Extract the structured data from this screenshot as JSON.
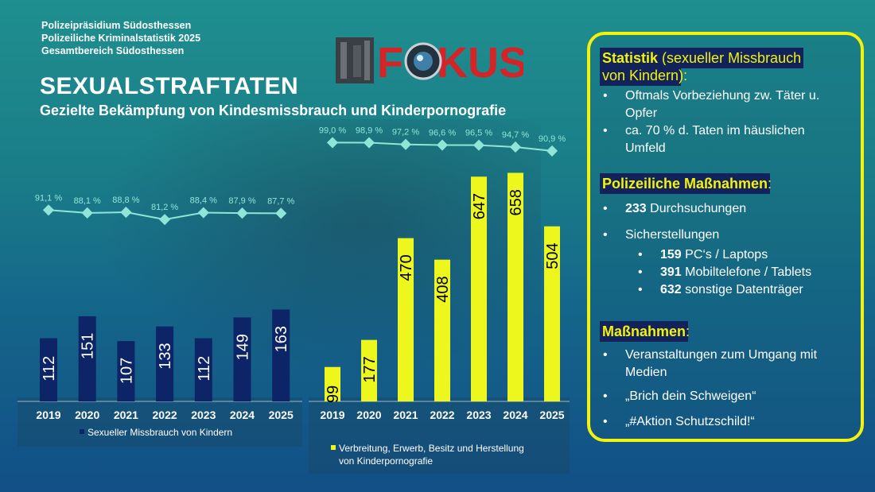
{
  "header": {
    "line1": "Polizeipräsidium Südosthessen",
    "line2": "Polizeiliche Kriminalstatistik 2025",
    "line3": "Gesamtbereich Südosthessen",
    "title": "SEXUALSTRAFTATEN",
    "subtitle": "Gezielte Bekämpfung von Kindesmissbrauch und Kinderpornografie"
  },
  "logo": {
    "text": "FOKUS",
    "text_color": "#d42427"
  },
  "colors": {
    "bar_left": "#0d2466",
    "bar_right": "#edf71e",
    "line": "#8fe6d6",
    "panel_border": "#f2f20a"
  },
  "chart_data": [
    {
      "type": "bar",
      "categories": [
        "2019",
        "2020",
        "2021",
        "2022",
        "2023",
        "2024",
        "2025"
      ],
      "series": [
        {
          "name": "Sexueller Missbrauch von Kindern",
          "values": [
            112,
            151,
            107,
            133,
            112,
            149,
            163
          ]
        }
      ],
      "line": {
        "labels": [
          "91,1 %",
          "88,1 %",
          "88,8 %",
          "81,2 %",
          "88,4 %",
          "87,9 %",
          "87,7 %"
        ],
        "values": [
          91.1,
          88.1,
          88.8,
          81.2,
          88.4,
          87.9,
          87.7
        ]
      },
      "ylim": [
        0,
        700
      ]
    },
    {
      "type": "bar",
      "categories": [
        "2019",
        "2020",
        "2021",
        "2022",
        "2023",
        "2024",
        "2025"
      ],
      "series": [
        {
          "name": "Verbreitung, Erwerb, Besitz und Herstellung von Kinderpornografie",
          "values": [
            99,
            177,
            470,
            408,
            647,
            658,
            504
          ]
        }
      ],
      "line": {
        "labels": [
          "99,0 %",
          "98,9 %",
          "97,2 %",
          "96,6 %",
          "96,5 %",
          "94,7 %",
          "90,9 %"
        ],
        "values": [
          99.0,
          98.9,
          97.2,
          96.6,
          96.5,
          94.7,
          90.9
        ]
      },
      "ylim": [
        0,
        700
      ]
    }
  ],
  "legend": {
    "left": "Sexueller Missbrauch von Kindern",
    "right_line1": "Verbreitung, Erwerb, Besitz und Herstellung",
    "right_line2": "von Kinderpornografie"
  },
  "panel": {
    "stat_title_bold": "Statistik",
    "stat_title_rest_line1": " (sexueller Missbrauch",
    "stat_title_line2": "von Kindern",
    "stat_title_line2_suffix": "):",
    "stat_items": [
      {
        "l1": "Oftmals Vorbeziehung zw. Täter u.",
        "l2": "Opfer"
      },
      {
        "l1": "ca. 70 % d. Taten im häuslichen",
        "l2": "Umfeld"
      }
    ],
    "police_title": "Polizeiliche Maßnahmen",
    "police_title_suffix": ":",
    "search_num": "233",
    "search_text": " Durchsuchungen",
    "seizure": "Sicherstellungen",
    "seized": [
      {
        "num": "159",
        "text": " PC‘s / Laptops"
      },
      {
        "num": "391",
        "text": " Mobiltelefone / Tablets"
      },
      {
        "num": "632",
        "text": " sonstige Datenträger"
      }
    ],
    "measures_title": "Maßnahmen",
    "measures_title_suffix": ":",
    "measures": [
      {
        "l1": "Veranstaltungen zum Umgang mit",
        "l2": "Medien"
      },
      {
        "l1": "„Brich dein Schweigen“",
        "l2": ""
      },
      {
        "l1": "„#Aktion Schutzschild!“",
        "l2": ""
      }
    ],
    "bullet": "•"
  }
}
